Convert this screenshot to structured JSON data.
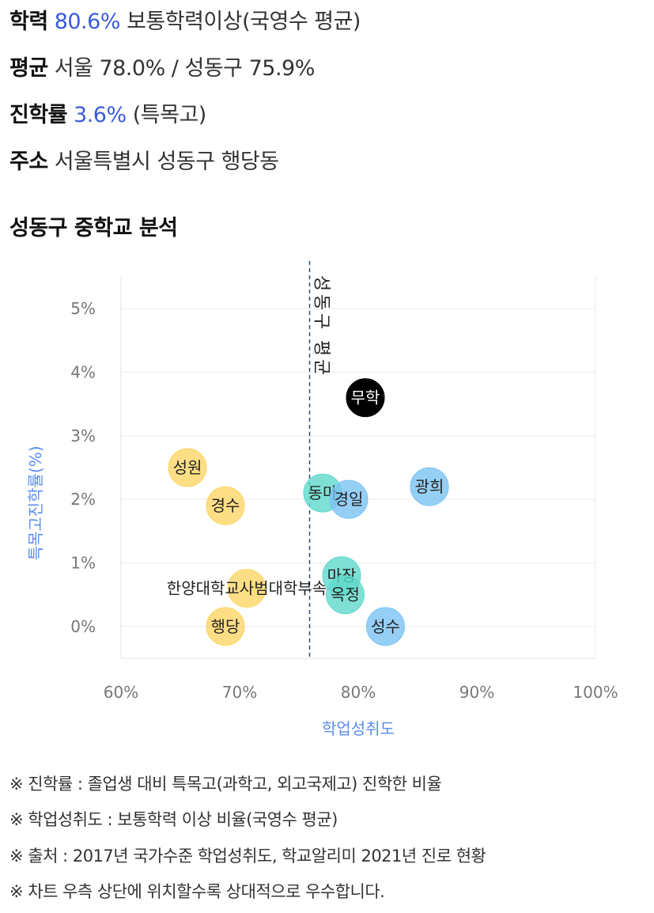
{
  "school": {
    "achievement_label": "학력",
    "achievement_value": "80.6%",
    "achievement_desc": "보통학력이상(국영수 평균)",
    "average_label": "평균",
    "average_value": "서울 78.0% / 성동구 75.9%",
    "advancement_label": "진학률",
    "advancement_value": "3.6%",
    "advancement_desc": "(특목고)",
    "address_label": "주소",
    "address_value": "서울특별시 성동구 행당동"
  },
  "section_title": "성동구 중학교 분석",
  "colors": {
    "highlight": "#3b5bdb",
    "axis_title": "#5b8def",
    "yellow": "#fcd667",
    "teal": "#5fd9cc",
    "blue": "#7cc3f2",
    "black": "#000000"
  },
  "chart_data": {
    "type": "scatter",
    "title": "",
    "xlabel": "학업성취도",
    "ylabel": "특목고진학률(%)",
    "xlim": [
      60,
      100
    ],
    "ylim": [
      -0.5,
      5.5
    ],
    "xticks": [
      "60%",
      "70%",
      "80%",
      "90%",
      "100%"
    ],
    "yticks": [
      "0%",
      "1%",
      "2%",
      "3%",
      "4%",
      "5%"
    ],
    "grid": true,
    "reference_line": {
      "x": 75.9,
      "label": "성동구 평균"
    },
    "points": [
      {
        "name": "무학",
        "x": 80.6,
        "y": 3.6,
        "color": "black"
      },
      {
        "name": "성원",
        "x": 65.6,
        "y": 2.5,
        "color": "yellow"
      },
      {
        "name": "경수",
        "x": 68.8,
        "y": 1.9,
        "color": "yellow"
      },
      {
        "name": "한양대학교사범대학부속",
        "x": 70.6,
        "y": 0.6,
        "color": "yellow"
      },
      {
        "name": "행당",
        "x": 68.8,
        "y": 0.0,
        "color": "yellow"
      },
      {
        "name": "동마",
        "x": 77.0,
        "y": 2.1,
        "color": "teal"
      },
      {
        "name": "마장",
        "x": 78.6,
        "y": 0.8,
        "color": "teal"
      },
      {
        "name": "옥정",
        "x": 78.9,
        "y": 0.5,
        "color": "teal"
      },
      {
        "name": "경일",
        "x": 79.2,
        "y": 2.0,
        "color": "blue"
      },
      {
        "name": "광희",
        "x": 86.0,
        "y": 2.2,
        "color": "blue"
      },
      {
        "name": "성수",
        "x": 82.3,
        "y": 0.0,
        "color": "blue"
      }
    ]
  },
  "notes": [
    "※ 진학률 : 졸업생 대비 특목고(과학고, 외고국제고) 진학한 비율",
    "※ 학업성취도 : 보통학력 이상 비율(국영수 평균)",
    "※ 출처 : 2017년 국가수준 학업성취도, 학교알리미 2021년 진로 현황",
    "※ 차트 우측 상단에 위치할수록 상대적으로 우수합니다."
  ]
}
